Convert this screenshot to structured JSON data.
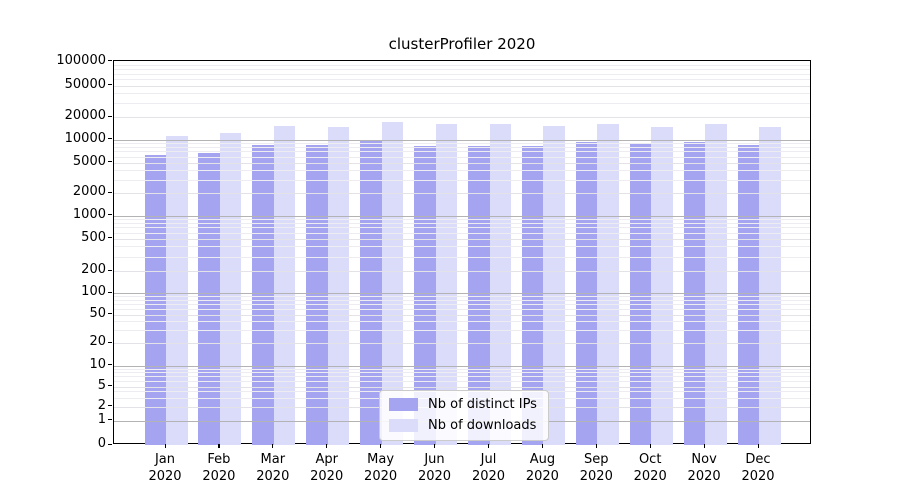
{
  "chart_data": {
    "type": "bar",
    "title": "clusterProfiler 2020",
    "xlabel": "",
    "ylabel": "",
    "yscale": "symlog",
    "grid": true,
    "legend_position": "lower center",
    "categories": [
      "Jan",
      "Feb",
      "Mar",
      "Apr",
      "May",
      "Jun",
      "Jul",
      "Aug",
      "Sep",
      "Oct",
      "Nov",
      "Dec"
    ],
    "x_tick_year": "2020",
    "series": [
      {
        "name": "Nb of distinct IPs",
        "color": "#a4a4f1",
        "values": [
          6300,
          6700,
          8400,
          8400,
          9700,
          8200,
          8200,
          8300,
          9300,
          8800,
          9200,
          8500
        ]
      },
      {
        "name": "Nb of downloads",
        "color": "#dbdbfa",
        "values": [
          11200,
          12300,
          15300,
          14800,
          17400,
          16000,
          16200,
          15300,
          16000,
          14900,
          16300,
          14800
        ]
      }
    ],
    "yticks": [
      0,
      1,
      2,
      5,
      10,
      20,
      50,
      100,
      200,
      500,
      1000,
      2000,
      5000,
      10000,
      20000,
      50000,
      100000
    ],
    "ylim": [
      0,
      100000
    ]
  },
  "colors": {
    "grid_major": "#b3b3b3",
    "grid_mid": "#e2e2e7",
    "grid_minor": "#ededf1",
    "spine": "#000000",
    "text": "#000000"
  }
}
